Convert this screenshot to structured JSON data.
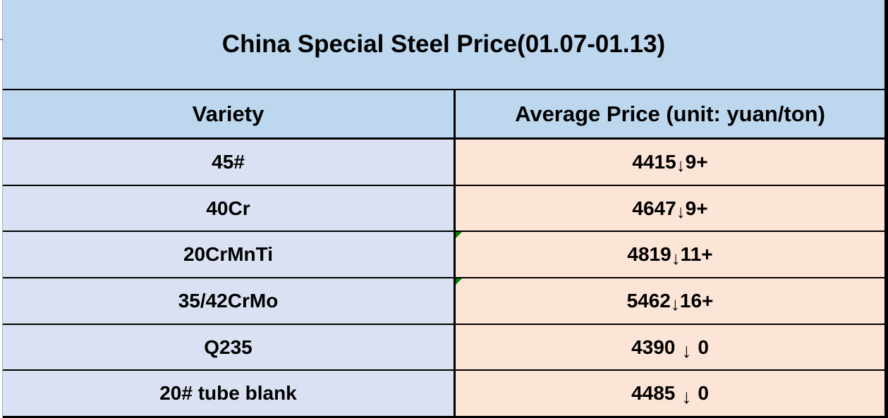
{
  "colors": {
    "header_blue": "#BDD7EE",
    "variety_lavender": "#D9E1F2",
    "price_peach": "#FCE4D6",
    "border_black": "#000000",
    "error_green": "#077d07"
  },
  "table": {
    "title": "China Special Steel Price(01.07-01.13)",
    "columns": {
      "variety": "Variety",
      "price": "Average Price (unit: yuan/ton)"
    },
    "rows": [
      {
        "variety": "45#",
        "value": "4415",
        "arrow": "↓",
        "change": "9+",
        "spaced": false,
        "error_marker": false
      },
      {
        "variety": "40Cr",
        "value": "4647",
        "arrow": "↓",
        "change": "9+",
        "spaced": false,
        "error_marker": false
      },
      {
        "variety": "20CrMnTi",
        "value": "4819",
        "arrow": "↓",
        "change": "11+",
        "spaced": false,
        "error_marker": true
      },
      {
        "variety": "35/42CrMo",
        "value": "5462",
        "arrow": "↓",
        "change": "16+",
        "spaced": false,
        "error_marker": true
      },
      {
        "variety": "Q235",
        "value": "4390",
        "arrow": "↓",
        "change": "0",
        "spaced": true,
        "error_marker": false
      },
      {
        "variety": "20# tube blank",
        "value": "4485",
        "arrow": "↓",
        "change": "0",
        "spaced": true,
        "error_marker": false
      }
    ]
  },
  "chart_data": {
    "type": "table",
    "title": "China Special Steel Price(01.07-01.13)",
    "columns": [
      "Variety",
      "Average Price (unit: yuan/ton)"
    ],
    "rows": [
      [
        "45#",
        "4415↓9+"
      ],
      [
        "40Cr",
        "4647↓9+"
      ],
      [
        "20CrMnTi",
        "4819↓11+"
      ],
      [
        "35/42CrMo",
        "5462↓16+"
      ],
      [
        "Q235",
        "4390 ↓ 0"
      ],
      [
        "20# tube blank",
        "4485 ↓ 0"
      ]
    ],
    "notes": "All prices show downward arrows; rows 20CrMnTi and 35/42CrMo price cells carry green spreadsheet error-indicator triangles"
  }
}
